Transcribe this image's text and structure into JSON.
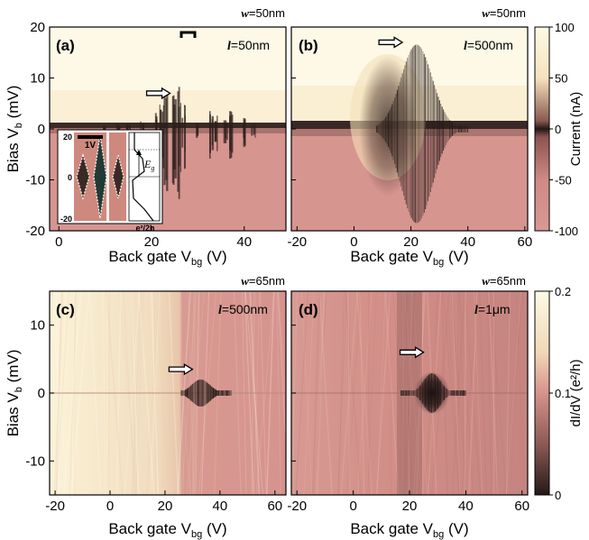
{
  "colors": {
    "cream": "#fcf6dc",
    "pink": "#d58f8b",
    "dark": "#2e2220",
    "mid": "#a8706b"
  },
  "top_colorbar": {
    "label": "Current (nA)",
    "ticks": [
      "100",
      "50",
      "0",
      "-50",
      "-100"
    ],
    "range": [
      -100,
      100
    ]
  },
  "bottom_colorbar": {
    "label": "dI/dV (e²/h)",
    "ticks": [
      "0.2",
      "0.1",
      "0"
    ],
    "range": [
      0,
      0.2
    ]
  },
  "inset": {
    "scale_label": "1V",
    "y_ticks": [
      "20",
      "0",
      "-20"
    ],
    "x_label": "e²/2h",
    "gap_label": "E",
    "gap_sub": "g"
  },
  "chart_data": [
    {
      "type": "heatmap",
      "panel": "(a)",
      "width_label": "w=50nm",
      "w_letter": "w",
      "w_value": "=50nm",
      "l_letter": "l",
      "l_value": "=50nm",
      "xlabel": "Back gate V",
      "xlabel_sub": "bg",
      "xlabel_unit": " (V)",
      "ylabel": "Bias V",
      "ylabel_sub": "b",
      "ylabel_unit": " (mV)",
      "xlim": [
        -2,
        49
      ],
      "ylim": [
        -20,
        20
      ],
      "x_ticks": [
        0,
        20,
        40
      ],
      "y_ticks": [
        20,
        10,
        0,
        -10,
        -20
      ],
      "colorscale": "Current (nA)",
      "features": {
        "transport_gap_center_vbg": 25,
        "arrow_at": [
          24,
          7
        ]
      }
    },
    {
      "type": "heatmap",
      "panel": "(b)",
      "width_label": "w=50nm",
      "w_letter": "w",
      "w_value": "=50nm",
      "l_letter": "l",
      "l_value": "=500nm",
      "xlabel": "Back gate V",
      "xlabel_sub": "bg",
      "xlabel_unit": " (V)",
      "xlim": [
        -22,
        61
      ],
      "ylim": [
        -20,
        20
      ],
      "x_ticks": [
        -20,
        0,
        20,
        40,
        60
      ],
      "colorscale": "Current (nA)",
      "features": {
        "transport_gap_center_vbg": 22,
        "arrow_at": [
          17,
          17
        ]
      }
    },
    {
      "type": "heatmap",
      "panel": "(c)",
      "width_label": "w=65nm",
      "w_letter": "w",
      "w_value": "=65nm",
      "l_letter": "l",
      "l_value": "=500nm",
      "xlabel": "Back gate V",
      "xlabel_sub": "bg",
      "xlabel_unit": " (V)",
      "ylabel": "Bias V",
      "ylabel_sub": "b",
      "ylabel_unit": " (mV)",
      "xlim": [
        -22,
        64
      ],
      "ylim": [
        -15,
        15
      ],
      "x_ticks": [
        -20,
        0,
        20,
        40,
        60
      ],
      "y_ticks": [
        10,
        0,
        -10
      ],
      "colorscale": "dI/dV (e²/h)",
      "features": {
        "transport_gap_center_vbg": 33,
        "arrow_at": [
          30,
          3.5
        ]
      }
    },
    {
      "type": "heatmap",
      "panel": "(d)",
      "width_label": "w=65nm",
      "w_letter": "w",
      "w_value": "=65nm",
      "l_letter": "l",
      "l_value": "=1μm",
      "xlabel": "Back gate V",
      "xlabel_sub": "bg",
      "xlabel_unit": " (V)",
      "xlim": [
        -22,
        62
      ],
      "ylim": [
        -15,
        15
      ],
      "x_ticks": [
        -20,
        0,
        20,
        40,
        60
      ],
      "colorscale": "dI/dV (e²/h)",
      "features": {
        "transport_gap_center_vbg": 28,
        "arrow_at": [
          25,
          6
        ]
      }
    }
  ]
}
